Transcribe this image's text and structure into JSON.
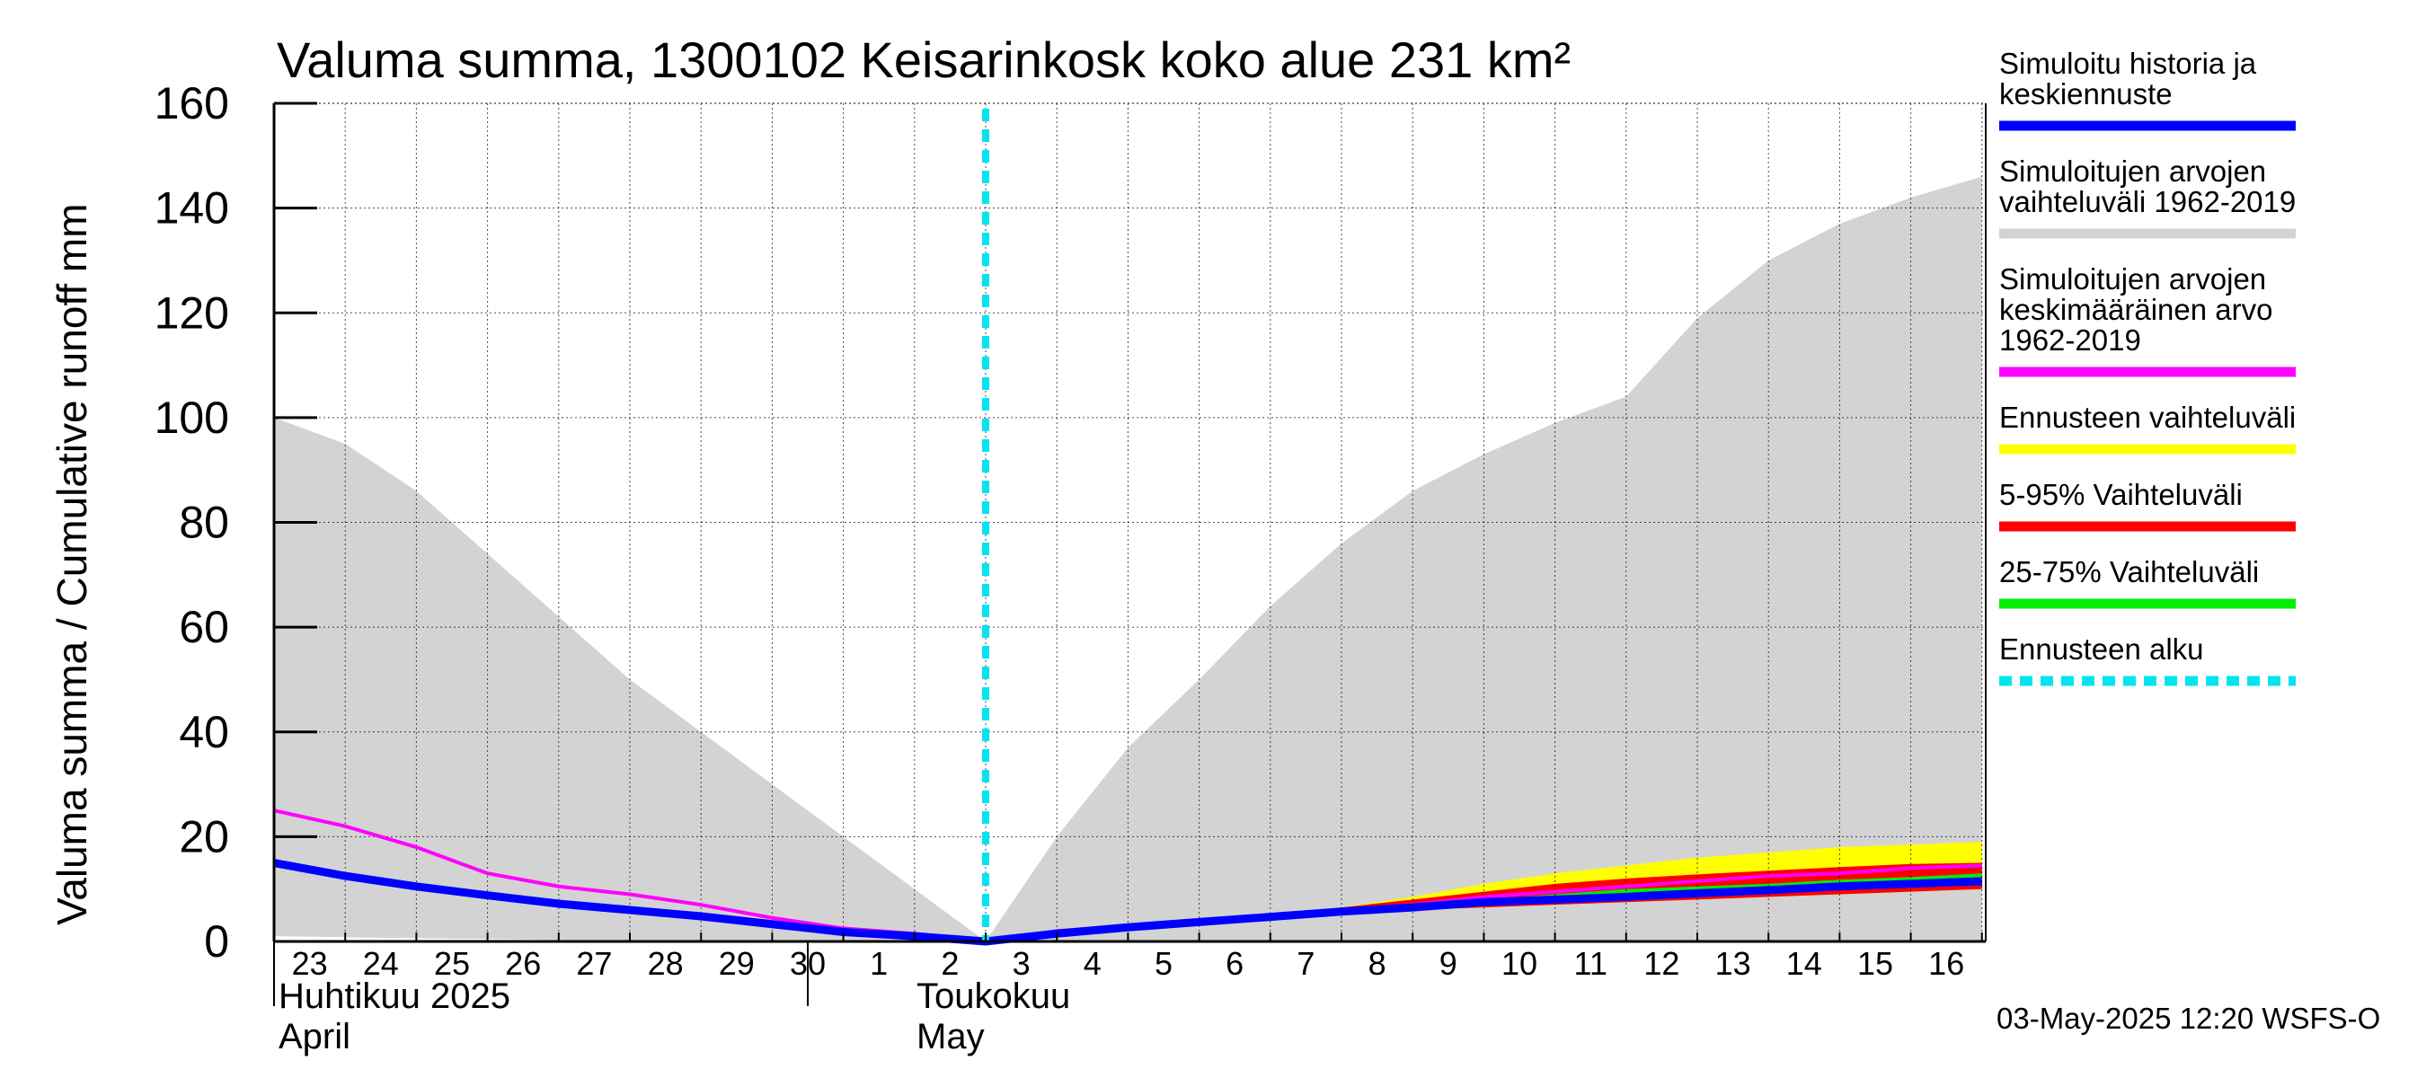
{
  "title": "Valuma summa, 1300102 Keisarinkosk koko alue 231 km²",
  "ylabel": "Valuma summa / Cumulative runoff    mm",
  "footer": "03-May-2025 12:20 WSFS-O",
  "month_labels": [
    {
      "fi": "Huhtikuu  2025",
      "en": "April"
    },
    {
      "fi": "Toukokuu",
      "en": "May"
    }
  ],
  "legend": [
    {
      "lines": [
        "Simuloitu historia ja",
        "keskiennuste"
      ],
      "color": "#0000ff",
      "style": "solid"
    },
    {
      "lines": [
        "Simuloitujen arvojen",
        "vaihteluväli 1962-2019"
      ],
      "color": "#d3d3d3",
      "style": "solid"
    },
    {
      "lines": [
        "Simuloitujen arvojen",
        "keskimääräinen arvo",
        "   1962-2019"
      ],
      "color": "#ff00ff",
      "style": "solid"
    },
    {
      "lines": [
        "Ennusteen vaihteluväli"
      ],
      "color": "#ffff00",
      "style": "solid"
    },
    {
      "lines": [
        "5-95% Vaihteluväli"
      ],
      "color": "#ff0000",
      "style": "solid"
    },
    {
      "lines": [
        "25-75% Vaihteluväli"
      ],
      "color": "#00ee00",
      "style": "solid"
    },
    {
      "lines": [
        "Ennusteen alku"
      ],
      "color": "#00e5ee",
      "style": "dashed"
    }
  ],
  "chart_data": {
    "type": "area",
    "ylim": [
      0,
      160
    ],
    "yticks": [
      0,
      20,
      40,
      60,
      80,
      100,
      120,
      140,
      160
    ],
    "x_tick_labels": [
      "23",
      "24",
      "25",
      "26",
      "27",
      "28",
      "29",
      "30",
      "1",
      "2",
      "3",
      "4",
      "5",
      "6",
      "7",
      "8",
      "9",
      "10",
      "11",
      "12",
      "13",
      "14",
      "15",
      "16"
    ],
    "forecast_start_index": 10,
    "grid": true,
    "colors": {
      "hist_range": "#d3d3d3",
      "mean": "#ff00ff",
      "forecast_range": "#ffff00",
      "p5_95": "#ff0000",
      "p25_75": "#00ee00",
      "median": "#0000ff",
      "forecast_start": "#00e5ee"
    },
    "series": [
      {
        "key": "hist_max",
        "values": [
          100,
          95,
          86,
          74,
          62,
          50,
          40,
          30,
          20,
          10,
          0,
          20,
          37,
          50,
          64,
          76,
          86,
          93,
          99,
          104,
          119,
          130,
          137,
          142,
          146
        ]
      },
      {
        "key": "hist_min",
        "values": [
          1,
          0.8,
          0.6,
          0.5,
          0.3,
          0.2,
          0.1,
          0,
          0,
          0,
          0,
          0,
          0,
          0,
          0,
          0,
          0,
          0,
          0,
          0,
          0,
          0,
          0,
          0,
          0
        ]
      },
      {
        "key": "mean",
        "values": [
          25,
          22,
          18,
          13,
          10.5,
          9,
          7,
          4.5,
          2.5,
          1.5,
          0,
          2,
          3,
          4,
          5,
          6,
          7,
          8.5,
          9.5,
          10.5,
          11.5,
          12.5,
          13,
          14,
          14.5
        ]
      },
      {
        "key": "forecast_max",
        "values": [
          null,
          null,
          null,
          null,
          null,
          null,
          null,
          null,
          null,
          null,
          0,
          1.5,
          3,
          4,
          5,
          6.5,
          8.5,
          11,
          13,
          14.5,
          16,
          17,
          18,
          18.5,
          19
        ]
      },
      {
        "key": "forecast_min",
        "values": [
          null,
          null,
          null,
          null,
          null,
          null,
          null,
          null,
          null,
          null,
          0,
          1.2,
          2.5,
          3.5,
          4.5,
          5.5,
          6,
          6.5,
          7,
          7.5,
          8,
          8.5,
          9,
          9.5,
          10
        ]
      },
      {
        "key": "p95",
        "values": [
          null,
          null,
          null,
          null,
          null,
          null,
          null,
          null,
          null,
          null,
          0,
          1.5,
          3,
          4,
          5,
          6.5,
          8,
          9.5,
          11,
          12,
          12.8,
          13.5,
          14.2,
          14.8,
          15
        ]
      },
      {
        "key": "p5",
        "values": [
          null,
          null,
          null,
          null,
          null,
          null,
          null,
          null,
          null,
          null,
          0,
          1.2,
          2.5,
          3.5,
          4.5,
          5.5,
          6,
          6.5,
          7,
          7.5,
          8,
          8.5,
          9,
          9.5,
          10
        ]
      },
      {
        "key": "p75",
        "values": [
          null,
          null,
          null,
          null,
          null,
          null,
          null,
          null,
          null,
          null,
          0,
          1.5,
          2.8,
          3.8,
          4.8,
          6,
          7,
          8,
          9,
          10,
          10.5,
          11,
          11.8,
          12.3,
          13
        ]
      },
      {
        "key": "p25",
        "values": [
          null,
          null,
          null,
          null,
          null,
          null,
          null,
          null,
          null,
          null,
          0,
          1.3,
          2.6,
          3.6,
          4.6,
          5.6,
          6.3,
          7,
          7.5,
          8,
          8.8,
          9.3,
          10,
          10.5,
          11
        ]
      },
      {
        "key": "median",
        "values": [
          15,
          12.5,
          10.5,
          8.8,
          7.2,
          6,
          4.8,
          3.3,
          1.8,
          1,
          0,
          1.5,
          2.7,
          3.7,
          4.7,
          5.7,
          6.5,
          7.5,
          8,
          8.5,
          9.2,
          9.8,
          10.5,
          11,
          11.5
        ]
      }
    ]
  }
}
